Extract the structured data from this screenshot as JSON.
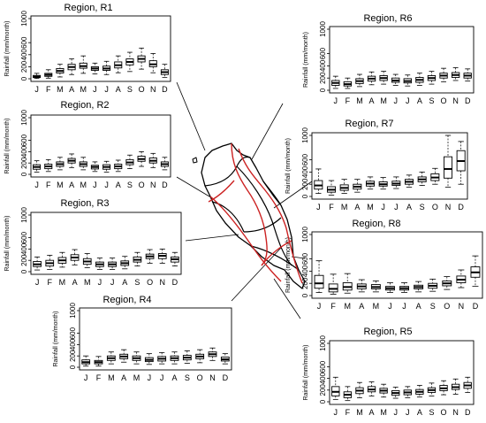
{
  "figure": {
    "months": [
      "J",
      "F",
      "M",
      "A",
      "M",
      "J",
      "J",
      "A",
      "S",
      "O",
      "N",
      "D"
    ],
    "ylabel": "Rainfall (mm/month)",
    "map_label": "Peninsular Malaysia regionalization map"
  },
  "chart_data": [
    {
      "type": "box",
      "title": "Region, R1",
      "ylabel": "Rainfall (mm/month)",
      "yticks": [
        0,
        200,
        400,
        600,
        1000
      ],
      "ylim": [
        0,
        1000
      ],
      "categories": [
        "J",
        "F",
        "M",
        "A",
        "M",
        "J",
        "J",
        "A",
        "S",
        "O",
        "N",
        "D"
      ],
      "boxes": [
        {
          "min": 5,
          "q1": 20,
          "median": 35,
          "q3": 55,
          "max": 90
        },
        {
          "min": 10,
          "q1": 40,
          "median": 65,
          "q3": 90,
          "max": 150
        },
        {
          "min": 30,
          "q1": 95,
          "median": 130,
          "q3": 170,
          "max": 240
        },
        {
          "min": 70,
          "q1": 150,
          "median": 195,
          "q3": 240,
          "max": 330
        },
        {
          "min": 90,
          "q1": 175,
          "median": 210,
          "q3": 260,
          "max": 380
        },
        {
          "min": 80,
          "q1": 140,
          "median": 170,
          "q3": 200,
          "max": 260
        },
        {
          "min": 70,
          "q1": 140,
          "median": 170,
          "q3": 210,
          "max": 290
        },
        {
          "min": 100,
          "q1": 180,
          "median": 225,
          "q3": 280,
          "max": 380
        },
        {
          "min": 120,
          "q1": 230,
          "median": 280,
          "q3": 330,
          "max": 440
        },
        {
          "min": 160,
          "q1": 280,
          "median": 330,
          "q3": 380,
          "max": 510
        },
        {
          "min": 100,
          "q1": 200,
          "median": 240,
          "q3": 300,
          "max": 420
        },
        {
          "min": 20,
          "q1": 70,
          "median": 110,
          "q3": 150,
          "max": 240
        }
      ]
    },
    {
      "type": "box",
      "title": "Region, R2",
      "ylabel": "Rainfall (mm/month)",
      "yticks": [
        0,
        200,
        400,
        600,
        1000
      ],
      "ylim": [
        0,
        1000
      ],
      "categories": [
        "J",
        "F",
        "M",
        "A",
        "M",
        "J",
        "J",
        "A",
        "S",
        "O",
        "N",
        "D"
      ],
      "boxes": [
        {
          "min": 40,
          "q1": 90,
          "median": 130,
          "q3": 170,
          "max": 240
        },
        {
          "min": 50,
          "q1": 100,
          "median": 140,
          "q3": 180,
          "max": 260
        },
        {
          "min": 80,
          "q1": 140,
          "median": 180,
          "q3": 220,
          "max": 300
        },
        {
          "min": 120,
          "q1": 200,
          "median": 240,
          "q3": 280,
          "max": 360
        },
        {
          "min": 80,
          "q1": 140,
          "median": 180,
          "q3": 220,
          "max": 300
        },
        {
          "min": 50,
          "q1": 95,
          "median": 130,
          "q3": 160,
          "max": 220
        },
        {
          "min": 40,
          "q1": 90,
          "median": 130,
          "q3": 170,
          "max": 230
        },
        {
          "min": 50,
          "q1": 100,
          "median": 140,
          "q3": 180,
          "max": 250
        },
        {
          "min": 100,
          "q1": 170,
          "median": 210,
          "q3": 260,
          "max": 340
        },
        {
          "min": 140,
          "q1": 230,
          "median": 270,
          "q3": 320,
          "max": 400
        },
        {
          "min": 120,
          "q1": 200,
          "median": 240,
          "q3": 290,
          "max": 370
        },
        {
          "min": 80,
          "q1": 140,
          "median": 180,
          "q3": 220,
          "max": 300
        }
      ]
    },
    {
      "type": "box",
      "title": "Region, R3",
      "ylabel": "Rainfall (mm/month)",
      "yticks": [
        0,
        200,
        400,
        600,
        1000
      ],
      "ylim": [
        0,
        1000
      ],
      "categories": [
        "J",
        "F",
        "M",
        "A",
        "M",
        "J",
        "J",
        "A",
        "S",
        "O",
        "N",
        "D"
      ],
      "boxes": [
        {
          "min": 30,
          "q1": 90,
          "median": 130,
          "q3": 180,
          "max": 260
        },
        {
          "min": 40,
          "q1": 100,
          "median": 150,
          "q3": 200,
          "max": 290
        },
        {
          "min": 80,
          "q1": 150,
          "median": 200,
          "q3": 250,
          "max": 340
        },
        {
          "min": 120,
          "q1": 200,
          "median": 250,
          "q3": 300,
          "max": 390
        },
        {
          "min": 70,
          "q1": 130,
          "median": 180,
          "q3": 230,
          "max": 320
        },
        {
          "min": 40,
          "q1": 90,
          "median": 130,
          "q3": 170,
          "max": 240
        },
        {
          "min": 40,
          "q1": 90,
          "median": 130,
          "q3": 170,
          "max": 240
        },
        {
          "min": 50,
          "q1": 110,
          "median": 150,
          "q3": 190,
          "max": 270
        },
        {
          "min": 100,
          "q1": 170,
          "median": 210,
          "q3": 260,
          "max": 340
        },
        {
          "min": 150,
          "q1": 230,
          "median": 270,
          "q3": 310,
          "max": 390
        },
        {
          "min": 150,
          "q1": 230,
          "median": 280,
          "q3": 320,
          "max": 400
        },
        {
          "min": 100,
          "q1": 170,
          "median": 220,
          "q3": 260,
          "max": 340
        }
      ]
    },
    {
      "type": "box",
      "title": "Region, R4",
      "ylabel": "Rainfall (mm/month)",
      "yticks": [
        0,
        200,
        400,
        600,
        1000
      ],
      "ylim": [
        0,
        1000
      ],
      "categories": [
        "J",
        "F",
        "M",
        "A",
        "M",
        "J",
        "J",
        "A",
        "S",
        "O",
        "N",
        "D"
      ],
      "boxes": [
        {
          "min": 20,
          "q1": 60,
          "median": 90,
          "q3": 130,
          "max": 200
        },
        {
          "min": 20,
          "q1": 60,
          "median": 90,
          "q3": 120,
          "max": 190
        },
        {
          "min": 60,
          "q1": 120,
          "median": 160,
          "q3": 200,
          "max": 270
        },
        {
          "min": 90,
          "q1": 150,
          "median": 190,
          "q3": 230,
          "max": 310
        },
        {
          "min": 60,
          "q1": 120,
          "median": 160,
          "q3": 200,
          "max": 270
        },
        {
          "min": 50,
          "q1": 100,
          "median": 130,
          "q3": 170,
          "max": 240
        },
        {
          "min": 60,
          "q1": 110,
          "median": 150,
          "q3": 190,
          "max": 260
        },
        {
          "min": 60,
          "q1": 120,
          "median": 160,
          "q3": 200,
          "max": 270
        },
        {
          "min": 70,
          "q1": 130,
          "median": 170,
          "q3": 210,
          "max": 290
        },
        {
          "min": 80,
          "q1": 150,
          "median": 190,
          "q3": 230,
          "max": 310
        },
        {
          "min": 120,
          "q1": 190,
          "median": 230,
          "q3": 270,
          "max": 340
        },
        {
          "min": 60,
          "q1": 110,
          "median": 140,
          "q3": 180,
          "max": 240
        }
      ]
    },
    {
      "type": "box",
      "title": "Region, R6",
      "ylabel": "Rainfall (mm/month)",
      "yticks": [
        0,
        200,
        400,
        600,
        1000
      ],
      "ylim": [
        0,
        1000
      ],
      "categories": [
        "J",
        "F",
        "M",
        "A",
        "M",
        "J",
        "J",
        "A",
        "S",
        "O",
        "N",
        "D"
      ],
      "boxes": [
        {
          "min": 30,
          "q1": 80,
          "median": 120,
          "q3": 160,
          "max": 230
        },
        {
          "min": 30,
          "q1": 70,
          "median": 100,
          "q3": 140,
          "max": 200
        },
        {
          "min": 60,
          "q1": 110,
          "median": 150,
          "q3": 190,
          "max": 260
        },
        {
          "min": 90,
          "q1": 150,
          "median": 190,
          "q3": 230,
          "max": 300
        },
        {
          "min": 100,
          "q1": 160,
          "median": 200,
          "q3": 240,
          "max": 310
        },
        {
          "min": 80,
          "q1": 130,
          "median": 160,
          "q3": 200,
          "max": 260
        },
        {
          "min": 70,
          "q1": 120,
          "median": 150,
          "q3": 190,
          "max": 250
        },
        {
          "min": 80,
          "q1": 130,
          "median": 170,
          "q3": 210,
          "max": 280
        },
        {
          "min": 100,
          "q1": 160,
          "median": 200,
          "q3": 240,
          "max": 310
        },
        {
          "min": 140,
          "q1": 200,
          "median": 240,
          "q3": 280,
          "max": 360
        },
        {
          "min": 160,
          "q1": 210,
          "median": 250,
          "q3": 290,
          "max": 370
        },
        {
          "min": 150,
          "q1": 200,
          "median": 240,
          "q3": 280,
          "max": 350
        }
      ]
    },
    {
      "type": "box",
      "title": "Region, R7",
      "ylabel": "Rainfall (mm/month)",
      "yticks": [
        0,
        200,
        400,
        600,
        1000
      ],
      "ylim": [
        0,
        1000
      ],
      "categories": [
        "J",
        "F",
        "M",
        "A",
        "M",
        "J",
        "J",
        "A",
        "S",
        "O",
        "N",
        "D"
      ],
      "boxes": [
        {
          "min": 50,
          "q1": 120,
          "median": 180,
          "q3": 260,
          "max": 450
        },
        {
          "min": 20,
          "q1": 70,
          "median": 110,
          "q3": 160,
          "max": 260
        },
        {
          "min": 50,
          "q1": 100,
          "median": 140,
          "q3": 190,
          "max": 280
        },
        {
          "min": 70,
          "q1": 120,
          "median": 160,
          "q3": 200,
          "max": 280
        },
        {
          "min": 120,
          "q1": 170,
          "median": 210,
          "q3": 250,
          "max": 320
        },
        {
          "min": 120,
          "q1": 170,
          "median": 200,
          "q3": 240,
          "max": 310
        },
        {
          "min": 130,
          "q1": 180,
          "median": 210,
          "q3": 250,
          "max": 320
        },
        {
          "min": 150,
          "q1": 200,
          "median": 240,
          "q3": 280,
          "max": 350
        },
        {
          "min": 180,
          "q1": 240,
          "median": 280,
          "q3": 320,
          "max": 400
        },
        {
          "min": 200,
          "q1": 260,
          "median": 310,
          "q3": 370,
          "max": 460
        },
        {
          "min": 150,
          "q1": 300,
          "median": 450,
          "q3": 650,
          "max": 1000
        },
        {
          "min": 200,
          "q1": 420,
          "median": 580,
          "q3": 750,
          "max": 900
        }
      ]
    },
    {
      "type": "box",
      "title": "Region, R8",
      "ylabel": "Rainfall (mm/month)",
      "yticks": [
        0,
        200,
        400,
        600,
        1000
      ],
      "ylim": [
        0,
        1000
      ],
      "categories": [
        "J",
        "F",
        "M",
        "A",
        "M",
        "J",
        "J",
        "A",
        "S",
        "O",
        "N",
        "D"
      ],
      "boxes": [
        {
          "min": 50,
          "q1": 120,
          "median": 200,
          "q3": 330,
          "max": 570
        },
        {
          "min": 20,
          "q1": 60,
          "median": 110,
          "q3": 190,
          "max": 350
        },
        {
          "min": 40,
          "q1": 90,
          "median": 140,
          "q3": 210,
          "max": 360
        },
        {
          "min": 60,
          "q1": 110,
          "median": 150,
          "q3": 190,
          "max": 260
        },
        {
          "min": 60,
          "q1": 110,
          "median": 140,
          "q3": 180,
          "max": 240
        },
        {
          "min": 50,
          "q1": 90,
          "median": 120,
          "q3": 150,
          "max": 210
        },
        {
          "min": 50,
          "q1": 90,
          "median": 120,
          "q3": 150,
          "max": 210
        },
        {
          "min": 60,
          "q1": 110,
          "median": 140,
          "q3": 170,
          "max": 230
        },
        {
          "min": 70,
          "q1": 120,
          "median": 160,
          "q3": 200,
          "max": 270
        },
        {
          "min": 100,
          "q1": 160,
          "median": 200,
          "q3": 240,
          "max": 310
        },
        {
          "min": 130,
          "q1": 210,
          "median": 260,
          "q3": 320,
          "max": 420
        },
        {
          "min": 150,
          "q1": 300,
          "median": 380,
          "q3": 470,
          "max": 650
        }
      ]
    },
    {
      "type": "box",
      "title": "Region, R5",
      "ylabel": "Rainfall (mm/month)",
      "yticks": [
        0,
        200,
        400,
        600,
        1000
      ],
      "ylim": [
        0,
        1000
      ],
      "categories": [
        "J",
        "F",
        "M",
        "A",
        "M",
        "J",
        "J",
        "A",
        "S",
        "O",
        "N",
        "D"
      ],
      "boxes": [
        {
          "min": 40,
          "q1": 100,
          "median": 170,
          "q3": 260,
          "max": 420
        },
        {
          "min": 20,
          "q1": 70,
          "median": 120,
          "q3": 170,
          "max": 260
        },
        {
          "min": 70,
          "q1": 140,
          "median": 190,
          "q3": 240,
          "max": 330
        },
        {
          "min": 100,
          "q1": 170,
          "median": 210,
          "q3": 260,
          "max": 340
        },
        {
          "min": 80,
          "q1": 150,
          "median": 190,
          "q3": 230,
          "max": 300
        },
        {
          "min": 60,
          "q1": 110,
          "median": 150,
          "q3": 190,
          "max": 250
        },
        {
          "min": 70,
          "q1": 120,
          "median": 160,
          "q3": 200,
          "max": 260
        },
        {
          "min": 80,
          "q1": 130,
          "median": 170,
          "q3": 210,
          "max": 280
        },
        {
          "min": 100,
          "q1": 160,
          "median": 200,
          "q3": 240,
          "max": 320
        },
        {
          "min": 120,
          "q1": 190,
          "median": 230,
          "q3": 280,
          "max": 360
        },
        {
          "min": 130,
          "q1": 210,
          "median": 250,
          "q3": 300,
          "max": 390
        },
        {
          "min": 160,
          "q1": 230,
          "median": 280,
          "q3": 330,
          "max": 420
        }
      ]
    }
  ],
  "colors": {
    "box_stroke": "#000000",
    "map_boundary": "#000000",
    "map_river": "#cc2222",
    "leader_line": "#000000"
  }
}
